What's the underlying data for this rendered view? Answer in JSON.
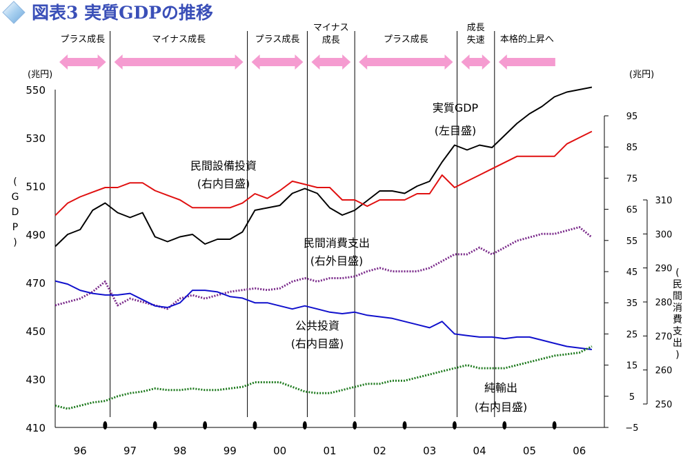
{
  "title": "図表3 実質GDPの推移",
  "phases": [
    {
      "label": "プラス成長",
      "lines": [
        "プラス成長"
      ],
      "from": 1995.5,
      "to": 1996.6,
      "dir": "both"
    },
    {
      "label": "マイナス成長",
      "lines": [
        "マイナス成長"
      ],
      "from": 1996.6,
      "to": 1999.35,
      "dir": "both"
    },
    {
      "label": "プラス成長",
      "lines": [
        "プラス成長"
      ],
      "from": 1999.35,
      "to": 2000.55,
      "dir": "both"
    },
    {
      "label": "マイナス\n成長",
      "lines": [
        "マイナス",
        "成長"
      ],
      "from": 2000.55,
      "to": 2001.5,
      "dir": "both"
    },
    {
      "label": "プラス成長",
      "lines": [
        "プラス成長"
      ],
      "from": 2001.5,
      "to": 2003.55,
      "dir": "both"
    },
    {
      "label": "成長\n失速",
      "lines": [
        "成長",
        "失速"
      ],
      "from": 2003.55,
      "to": 2004.3,
      "dir": "both"
    },
    {
      "label": "本格的上昇へ",
      "lines": [
        "本格的上昇へ"
      ],
      "from": 2004.3,
      "to": 2005.6,
      "dir": "left"
    }
  ],
  "phase_dividers": [
    1996.6,
    1999.35,
    2000.55,
    2001.5,
    2003.55,
    2004.3
  ],
  "axes": {
    "left_unit": "(兆円)",
    "left_title": "(GDP)",
    "left_ticks": [
      "550",
      "530",
      "510",
      "490",
      "470",
      "450",
      "430",
      "410"
    ],
    "left_range": [
      410,
      550
    ],
    "right_inner_unit": "(兆円)",
    "right_inner_ticks": [
      "95",
      "85",
      "75",
      "65",
      "55",
      "45",
      "35",
      "25",
      "15",
      "5",
      "−5"
    ],
    "right_inner_range": [
      -5,
      95
    ],
    "right_outer_title": "(民間消費支出)",
    "right_outer_ticks": [
      "310",
      "300",
      "290",
      "280",
      "270",
      "260",
      "250"
    ],
    "right_outer_range": [
      250,
      310
    ],
    "x_years": [
      "96",
      "97",
      "98",
      "99",
      "00",
      "01",
      "02",
      "03",
      "04",
      "05",
      "06"
    ]
  },
  "annotations": {
    "gdp": [
      "実質GDP",
      "(左目盛)"
    ],
    "capex": [
      "民間設備投資",
      "(右内目盛)"
    ],
    "consumption": [
      "民間消費支出",
      "(右外目盛)"
    ],
    "public": [
      "公共投資",
      "(右内目盛)"
    ],
    "net_exports": [
      "純輸出",
      "(右内目盛)"
    ]
  },
  "colors": {
    "title": "#3a4fb8",
    "gdp": "#000000",
    "capex": "#e01010",
    "consumption": "#7a2a8a",
    "public": "#1010cc",
    "net_exports": "#1e7a1e",
    "arrow": "#f59bd0"
  },
  "chart_data": {
    "type": "line",
    "title": "図表3 実質GDPの推移",
    "x_start": 1995.5,
    "x_end": 2006.5,
    "series": [
      {
        "name": "実質GDP",
        "axis": "left",
        "unit": "兆円",
        "style": "solid",
        "x": [
          1995.5,
          1995.75,
          1996.0,
          1996.25,
          1996.5,
          1996.75,
          1997.0,
          1997.25,
          1997.5,
          1997.75,
          1998.0,
          1998.25,
          1998.5,
          1998.75,
          1999.0,
          1999.25,
          1999.5,
          1999.75,
          2000.0,
          2000.25,
          2000.5,
          2000.75,
          2001.0,
          2001.25,
          2001.5,
          2001.75,
          2002.0,
          2002.25,
          2002.5,
          2002.75,
          2003.0,
          2003.25,
          2003.5,
          2003.75,
          2004.0,
          2004.25,
          2004.5,
          2004.75,
          2005.0,
          2005.25,
          2005.5,
          2005.75,
          2006.0,
          2006.25
        ],
        "values": [
          485,
          490,
          492,
          500,
          503,
          499,
          497,
          499,
          489,
          487,
          489,
          490,
          486,
          488,
          488,
          491,
          500,
          501,
          502,
          507,
          509,
          507,
          501,
          498,
          500,
          504,
          508,
          508,
          507,
          510,
          512,
          520,
          527,
          525,
          527,
          526,
          531,
          536,
          540,
          543,
          547,
          549,
          550,
          551
        ]
      },
      {
        "name": "民間設備投資",
        "axis": "right_inner",
        "unit": "兆円",
        "style": "solid",
        "x": [
          1995.5,
          1995.75,
          1996.0,
          1996.25,
          1996.5,
          1996.75,
          1997.0,
          1997.25,
          1997.5,
          1997.75,
          1998.0,
          1998.25,
          1998.5,
          1998.75,
          1999.0,
          1999.25,
          1999.5,
          1999.75,
          2000.0,
          2000.25,
          2000.5,
          2000.75,
          2001.0,
          2001.25,
          2001.5,
          2001.75,
          2002.0,
          2002.25,
          2002.5,
          2002.75,
          2003.0,
          2003.25,
          2003.5,
          2003.75,
          2004.0,
          2004.25,
          2004.5,
          2004.75,
          2005.0,
          2005.25,
          2005.5,
          2005.75,
          2006.0,
          2006.25
        ],
        "values": [
          63,
          67,
          69,
          70.5,
          72,
          72,
          73.5,
          73.5,
          71,
          69.5,
          68,
          65.5,
          65.5,
          65.5,
          65.5,
          67,
          70,
          68.5,
          71,
          74,
          73,
          72,
          72,
          68,
          68,
          66,
          68,
          68,
          68,
          70,
          70,
          76,
          72,
          74,
          76,
          78,
          80,
          82,
          82,
          82,
          82,
          86,
          88,
          90
        ]
      },
      {
        "name": "民間消費支出",
        "axis": "right_outer",
        "unit": "兆円",
        "style": "dotted",
        "x": [
          1995.5,
          1995.75,
          1996.0,
          1996.25,
          1996.5,
          1996.75,
          1997.0,
          1997.25,
          1997.5,
          1997.75,
          1998.0,
          1998.25,
          1998.5,
          1998.75,
          1999.0,
          1999.25,
          1999.5,
          1999.75,
          2000.0,
          2000.25,
          2000.5,
          2000.75,
          2001.0,
          2001.25,
          2001.5,
          2001.75,
          2002.0,
          2002.25,
          2002.5,
          2002.75,
          2003.0,
          2003.25,
          2003.5,
          2003.75,
          2004.0,
          2004.25,
          2004.5,
          2004.75,
          2005.0,
          2005.25,
          2005.5,
          2005.75,
          2006.0,
          2006.25
        ],
        "values": [
          279,
          280,
          281,
          283,
          286,
          279,
          281,
          280,
          279,
          278,
          281,
          282,
          281,
          282,
          283,
          283.5,
          284,
          283.5,
          284,
          286,
          287,
          286,
          287,
          287,
          287.5,
          289,
          290,
          289,
          289,
          289,
          290,
          292,
          294,
          294,
          296,
          294,
          296,
          298,
          299,
          300,
          300,
          301,
          302,
          299
        ]
      },
      {
        "name": "公共投資",
        "axis": "right_inner",
        "unit": "兆円",
        "style": "solid",
        "x": [
          1995.5,
          1995.75,
          1996.0,
          1996.25,
          1996.5,
          1996.75,
          1997.0,
          1997.25,
          1997.5,
          1997.75,
          1998.0,
          1998.25,
          1998.5,
          1998.75,
          1999.0,
          1999.25,
          1999.5,
          1999.75,
          2000.0,
          2000.25,
          2000.5,
          2000.75,
          2001.0,
          2001.25,
          2001.5,
          2001.75,
          2002.0,
          2002.25,
          2002.5,
          2002.75,
          2003.0,
          2003.25,
          2003.5,
          2003.75,
          2004.0,
          2004.25,
          2004.5,
          2004.75,
          2005.0,
          2005.25,
          2005.5,
          2005.75,
          2006.0,
          2006.25
        ],
        "values": [
          42,
          41,
          39,
          38,
          37.5,
          37.5,
          38,
          36,
          34,
          33.5,
          35,
          39,
          39,
          38.5,
          37,
          36.5,
          35,
          35,
          34,
          33,
          34,
          33,
          32,
          31.5,
          32,
          31,
          30.5,
          30,
          29,
          28,
          27,
          29,
          25,
          24.5,
          24,
          24,
          23.5,
          24,
          24,
          23,
          22,
          21,
          20.5,
          20
        ]
      },
      {
        "name": "純輸出",
        "axis": "right_inner",
        "unit": "兆円",
        "style": "dotted",
        "x": [
          1995.5,
          1995.75,
          1996.0,
          1996.25,
          1996.5,
          1996.75,
          1997.0,
          1997.25,
          1997.5,
          1997.75,
          1998.0,
          1998.25,
          1998.5,
          1998.75,
          1999.0,
          1999.25,
          1999.5,
          1999.75,
          2000.0,
          2000.25,
          2000.5,
          2000.75,
          2001.0,
          2001.25,
          2001.5,
          2001.75,
          2002.0,
          2002.25,
          2002.5,
          2002.75,
          2003.0,
          2003.25,
          2003.5,
          2003.75,
          2004.0,
          2004.25,
          2004.5,
          2004.75,
          2005.0,
          2005.25,
          2005.5,
          2005.75,
          2006.0,
          2006.25
        ],
        "values": [
          2,
          1,
          2,
          3,
          3.5,
          5,
          6,
          6.5,
          7.5,
          7,
          7,
          7.5,
          7,
          7,
          7.5,
          8,
          9.5,
          9.5,
          9.5,
          8,
          6.5,
          6,
          6,
          7,
          8,
          9,
          9,
          10,
          10,
          11,
          12,
          13,
          14,
          15,
          14,
          14,
          14,
          15,
          16,
          17,
          18,
          18.5,
          19,
          21
        ]
      }
    ]
  }
}
